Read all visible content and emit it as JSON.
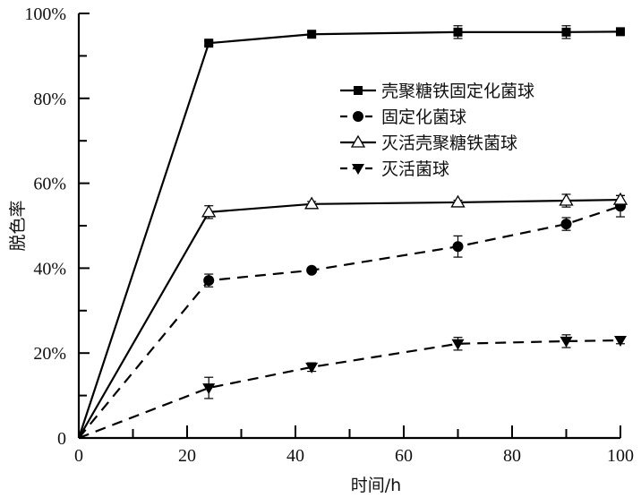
{
  "chart_data": {
    "type": "line",
    "title": "",
    "xlabel": "时间/h",
    "ylabel": "脱色率",
    "xlim": [
      0,
      100
    ],
    "ylim": [
      0,
      100
    ],
    "x_ticks": [
      0,
      20,
      40,
      60,
      80,
      100
    ],
    "x_tick_labels": [
      "0",
      "20",
      "40",
      "60",
      "80",
      "100"
    ],
    "y_ticks": [
      0,
      20,
      40,
      60,
      80,
      100
    ],
    "y_tick_labels": [
      "0",
      "20%",
      "40%",
      "60%",
      "80%",
      "100%"
    ],
    "grid": false,
    "legend_position": "upper right (inside)",
    "x": [
      0,
      24,
      43,
      70,
      90,
      100
    ],
    "series": [
      {
        "name": "壳聚糖铁固定化菌球",
        "marker": "square-filled",
        "line": "solid",
        "values": [
          0,
          93.0,
          95.1,
          95.6,
          95.6,
          95.7
        ],
        "errors": [
          0,
          0.5,
          0.6,
          1.5,
          1.5,
          0.5
        ]
      },
      {
        "name": "固定化菌球",
        "marker": "circle-filled",
        "line": "dashed",
        "values": [
          0,
          37.1,
          39.5,
          45.1,
          50.4,
          54.6
        ],
        "errors": [
          0,
          1.5,
          0.5,
          2.5,
          1.5,
          2.5
        ]
      },
      {
        "name": "灭活壳聚糖铁菌球",
        "marker": "triangle-up-open",
        "line": "solid",
        "values": [
          0,
          53.2,
          55.1,
          55.5,
          55.9,
          56.1
        ],
        "errors": [
          0,
          1.5,
          0.6,
          0.5,
          1.5,
          1.0
        ]
      },
      {
        "name": "灭活菌球",
        "marker": "triangle-down-filled",
        "line": "dashed",
        "values": [
          0,
          11.8,
          16.7,
          22.2,
          22.8,
          23.0
        ],
        "errors": [
          0,
          2.5,
          1.0,
          1.5,
          1.5,
          0.8
        ]
      }
    ]
  },
  "colors": {
    "ink": "#000000",
    "background": "#ffffff"
  }
}
